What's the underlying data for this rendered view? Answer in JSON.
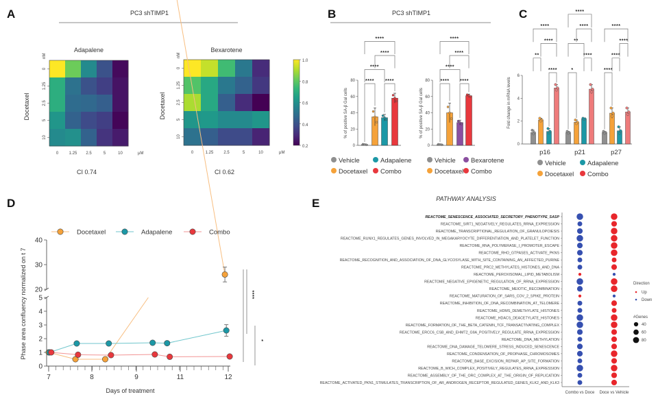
{
  "panel_labels": [
    "A",
    "B",
    "C",
    "D",
    "E"
  ],
  "headers": {
    "A": "PC3 shTIMP1",
    "B": "PC3 shTIMP1"
  },
  "colors": {
    "vehicle": "#8f8f8f",
    "docetaxel": "#f5a23a",
    "adapalene": "#1c98a6",
    "bexarotene": "#8a4fa0",
    "combo": "#e8383d",
    "combo_light": "#ee7b7b",
    "up": "#e8262b",
    "down": "#3650b0"
  },
  "colorbar": {
    "min": 0.2,
    "max": 1.0,
    "ticks": [
      "1.0",
      "0.8",
      "0.6",
      "0.4",
      "0.2"
    ]
  },
  "chart_data": [
    {
      "type": "heatmap",
      "title": "Adapalene",
      "ylabel": "Docetaxel",
      "y_unit": "nM",
      "x_unit": "μM",
      "x_ticks": [
        "0",
        "1.25",
        "2.5",
        "5",
        "10"
      ],
      "y_ticks": [
        "0",
        "1.25",
        "2.5",
        "5",
        "10"
      ],
      "values": [
        [
          1.0,
          0.82,
          0.58,
          0.4,
          0.22
        ],
        [
          0.7,
          0.5,
          0.4,
          0.35,
          0.24
        ],
        [
          0.7,
          0.48,
          0.47,
          0.44,
          0.24
        ],
        [
          0.62,
          0.45,
          0.38,
          0.35,
          0.21
        ],
        [
          0.58,
          0.6,
          0.45,
          0.32,
          0.26
        ]
      ],
      "annotation": "CI 0.74"
    },
    {
      "type": "heatmap",
      "title": "Bexarotene",
      "ylabel": "Docetaxel",
      "y_unit": "nM",
      "x_unit": "μM",
      "x_ticks": [
        "0",
        "1.25",
        "2.5",
        "5",
        "10"
      ],
      "y_ticks": [
        "0",
        "1.25",
        "2.5",
        "5",
        "10"
      ],
      "values": [
        [
          1.0,
          0.93,
          0.75,
          0.52,
          0.3
        ],
        [
          0.78,
          0.68,
          0.52,
          0.45,
          0.33
        ],
        [
          0.9,
          0.68,
          0.44,
          0.3,
          0.2
        ],
        [
          0.62,
          0.63,
          0.58,
          0.58,
          0.62
        ],
        [
          0.5,
          0.44,
          0.38,
          0.38,
          0.28
        ]
      ],
      "annotation": "CI 0.62"
    },
    {
      "type": "bar",
      "ylabel": "% of positive SA-β Gal cells",
      "ylim": [
        0,
        80
      ],
      "yticks": [
        "0",
        "20",
        "40",
        "60",
        "80"
      ],
      "categories": [
        "Vehicle",
        "Docetaxel",
        "Adapalene",
        "Combo"
      ],
      "color_keys": [
        "vehicle",
        "docetaxel",
        "adapalene",
        "combo"
      ],
      "values": [
        1,
        35,
        34,
        58
      ],
      "errors": [
        0.6,
        11,
        4,
        6
      ],
      "comparisons": [
        {
          "pair": [
            0,
            1
          ],
          "label": "****",
          "level": 0
        },
        {
          "pair": [
            2,
            3
          ],
          "label": "****",
          "level": 0
        },
        {
          "pair": [
            0,
            2
          ],
          "label": "****",
          "level": 1
        },
        {
          "pair": [
            1,
            3
          ],
          "label": "****",
          "level": 2
        },
        {
          "pair": [
            0,
            3
          ],
          "label": "****",
          "level": 3
        }
      ],
      "legend": [
        "Vehicle",
        "Adapalene",
        "Docetaxel",
        "Combo"
      ]
    },
    {
      "type": "bar",
      "ylabel": "% of positive SA-β Gal cells",
      "ylim": [
        0,
        80
      ],
      "yticks": [
        "0",
        "20",
        "40",
        "60",
        "80"
      ],
      "categories": [
        "Vehicle",
        "Docetaxel",
        "Bexarotene",
        "Combo"
      ],
      "color_keys": [
        "vehicle",
        "docetaxel",
        "bexarotene",
        "combo"
      ],
      "values": [
        1,
        40,
        28,
        61
      ],
      "errors": [
        0.5,
        12,
        3,
        2
      ],
      "comparisons": [
        {
          "pair": [
            0,
            1
          ],
          "label": "****",
          "level": 0
        },
        {
          "pair": [
            2,
            3
          ],
          "label": "****",
          "level": 0
        },
        {
          "pair": [
            0,
            2
          ],
          "label": "****",
          "level": 1
        },
        {
          "pair": [
            1,
            3
          ],
          "label": "****",
          "level": 2
        },
        {
          "pair": [
            0,
            3
          ],
          "label": "****",
          "level": 3
        }
      ],
      "legend": [
        "Vehicle",
        "Bexarotene",
        "Docetaxel",
        "Combo"
      ]
    },
    {
      "type": "bar",
      "ylabel": "Fold change in mRNA levels",
      "ylim": [
        0,
        6
      ],
      "yticks": [
        "0",
        "2",
        "4",
        "6"
      ],
      "groups": [
        "p16",
        "p21",
        "p27"
      ],
      "series": [
        {
          "name": "Vehicle",
          "color_key": "vehicle",
          "values": [
            1.0,
            1.0,
            1.0
          ],
          "errors": [
            0.2,
            0.1,
            0.1
          ]
        },
        {
          "name": "Docetaxel",
          "color_key": "docetaxel",
          "values": [
            2.1,
            1.9,
            2.7
          ],
          "errors": [
            0.15,
            0.2,
            0.45
          ]
        },
        {
          "name": "Adapalene",
          "color_key": "adapalene",
          "values": [
            1.1,
            2.2,
            1.15
          ],
          "errors": [
            0.25,
            0.05,
            0.35
          ]
        },
        {
          "name": "Combo",
          "color_key": "combo_light",
          "values": [
            4.9,
            4.8,
            2.8
          ],
          "errors": [
            0.3,
            0.4,
            0.35
          ]
        }
      ],
      "comparisons": [
        [
          {
            "pair": [
              2,
              3
            ],
            "label": "****",
            "level": 0
          },
          {
            "pair": [
              0,
              1
            ],
            "label": "**",
            "level": 1
          },
          {
            "pair": [
              1,
              3
            ],
            "label": "****",
            "level": 2
          },
          {
            "pair": [
              0,
              3
            ],
            "label": "****",
            "level": 3
          }
        ],
        [
          {
            "pair": [
              0,
              1
            ],
            "label": "*",
            "level": 0
          },
          {
            "pair": [
              2,
              3
            ],
            "label": "****",
            "level": 1
          },
          {
            "pair": [
              0,
              2
            ],
            "label": "**",
            "level": 2
          },
          {
            "pair": [
              1,
              3
            ],
            "label": "****",
            "level": 3
          },
          {
            "pair": [
              0,
              3
            ],
            "label": "****",
            "level": 4
          }
        ],
        [
          {
            "pair": [
              0,
              1
            ],
            "label": "****",
            "level": 0
          },
          {
            "pair": [
              1,
              2
            ],
            "label": "****",
            "level": 1
          },
          {
            "pair": [
              2,
              3
            ],
            "label": "****",
            "level": 2
          },
          {
            "pair": [
              0,
              3
            ],
            "label": "****",
            "level": 3
          }
        ]
      ],
      "legend": [
        "Vehicle",
        "Adapalene",
        "Docetaxel",
        "Combo"
      ]
    },
    {
      "type": "line",
      "xlabel": "Days of treatment",
      "ylabel": "Phase area confluency normalized on t 7",
      "x_ticks": [
        "7",
        "8",
        "9",
        "11",
        "12"
      ],
      "y_ticks_lower": [
        "0",
        "1",
        "2",
        "3",
        "4",
        "5"
      ],
      "y_ticks_upper": [
        "20",
        "30",
        "40"
      ],
      "ylim_lower": [
        0,
        5
      ],
      "ylim_upper": [
        20,
        40
      ],
      "series": [
        {
          "name": "Docetaxel",
          "color_key": "docetaxel",
          "x_tick_pos": [
            0,
            0.62,
            1.3,
            3.93
          ],
          "y": [
            1,
            0.5,
            0.5,
            26
          ],
          "errors": [
            0,
            0,
            0,
            3
          ]
        },
        {
          "name": "Adapalene",
          "color_key": "adapalene",
          "x_tick_pos": [
            0.02,
            0.65,
            1.38,
            2.37,
            2.7,
            3.96
          ],
          "y": [
            1,
            1.65,
            1.65,
            1.7,
            1.67,
            2.6
          ],
          "errors": [
            0,
            0,
            0,
            0,
            0,
            0.42
          ]
        },
        {
          "name": "Combo",
          "color_key": "combo",
          "x_tick_pos": [
            0.06,
            0.68,
            1.43,
            2.42,
            2.76,
            4.03
          ],
          "y": [
            1,
            0.83,
            0.8,
            0.85,
            0.68,
            0.7
          ],
          "errors": [
            0,
            0,
            0,
            0,
            0,
            0
          ]
        }
      ],
      "significance": [
        {
          "label": "****"
        },
        {
          "label": "*"
        }
      ]
    },
    {
      "type": "dot",
      "title": "PATHWAY ANALYSIS",
      "columns": [
        "Combo vs Doce",
        "Doce vs Vehicle"
      ],
      "legend": {
        "direction_title": "Direction",
        "up": "Up",
        "down": "Down",
        "size_title": "#Genes",
        "sizes": [
          "40",
          "60",
          "80"
        ]
      },
      "pathways": [
        {
          "name": "REACTOME_SENESCENCE_ASSOCIATED_SECRETORY_PHENOTYPE_SASP",
          "highlight": true,
          "combo_vs_doce": {
            "dir": "Down",
            "genes": 75
          },
          "doce_vs_vehicle": {
            "dir": "Up",
            "genes": 75
          }
        },
        {
          "name": "REACTOME_SIRT1_NEGATIVELY_REGULATES_RRNA_EXPRESSION",
          "combo_vs_doce": {
            "dir": "Down",
            "genes": 40
          },
          "doce_vs_vehicle": {
            "dir": "Up",
            "genes": 55
          }
        },
        {
          "name": "REACTOME_TRANSCRIPTIONAL_REGULATION_OF_GRANULOPOIESIS",
          "combo_vs_doce": {
            "dir": "Down",
            "genes": 55
          },
          "doce_vs_vehicle": {
            "dir": "Up",
            "genes": 75
          }
        },
        {
          "name": "REACTOME_RUNX1_REGULATES_GENES_INVOLVED_IN_MEGAKARYOCYTE_DIFFERENTIATION_AND_PLATELET_FUNCTION",
          "combo_vs_doce": {
            "dir": "Down",
            "genes": 75
          },
          "doce_vs_vehicle": {
            "dir": "Up",
            "genes": 75
          }
        },
        {
          "name": "REACTOME_RNA_POLYMERASE_I_PROMOTER_ESCAPE",
          "combo_vs_doce": {
            "dir": "Down",
            "genes": 55
          },
          "doce_vs_vehicle": {
            "dir": "Up",
            "genes": 75
          }
        },
        {
          "name": "REACTOME_RHO_GTPASES_ACTIVATE_PKNS",
          "combo_vs_doce": {
            "dir": "Down",
            "genes": 55
          },
          "doce_vs_vehicle": {
            "dir": "Up",
            "genes": 75
          }
        },
        {
          "name": "REACTOME_RECOGNITION_AND_ASSOCIATION_OF_DNA_GLYCOSYLASE_WITH_SITE_CONTAINING_AN_AFFECTED_PURINE",
          "combo_vs_doce": {
            "dir": "Down",
            "genes": 40
          },
          "doce_vs_vehicle": {
            "dir": "Up",
            "genes": 40
          }
        },
        {
          "name": "REACTOME_PRC2_METHYLATES_HISTONES_AND_DNA",
          "combo_vs_doce": {
            "dir": "Down",
            "genes": 40
          },
          "doce_vs_vehicle": {
            "dir": "Up",
            "genes": 55
          }
        },
        {
          "name": "REACTOME_PEROXISOMAL_LIPID_METABOLISM",
          "combo_vs_doce": {
            "dir": "Up",
            "genes": 15
          },
          "doce_vs_vehicle": {
            "dir": "Down",
            "genes": 15
          }
        },
        {
          "name": "REACTOME_NEGATIVE_EPIGENETIC_REGULATION_OF_RRNA_EXPRESSION",
          "combo_vs_doce": {
            "dir": "Down",
            "genes": 75
          },
          "doce_vs_vehicle": {
            "dir": "Up",
            "genes": 75
          }
        },
        {
          "name": "REACTOME_MEIOTIC_RECOMBINATION",
          "combo_vs_doce": {
            "dir": "Down",
            "genes": 55
          },
          "doce_vs_vehicle": {
            "dir": "Up",
            "genes": 75
          }
        },
        {
          "name": "REACTOME_MATURATION_OF_SARS_COV_2_SPIKE_PROTEIN",
          "combo_vs_doce": {
            "dir": "Up",
            "genes": 15
          },
          "doce_vs_vehicle": {
            "dir": "Down",
            "genes": 15
          }
        },
        {
          "name": "REACTOME_INHIBITION_OF_DNA_RECOMBINATION_AT_TELOMERE",
          "combo_vs_doce": {
            "dir": "Down",
            "genes": 40
          },
          "doce_vs_vehicle": {
            "dir": "Up",
            "genes": 55
          }
        },
        {
          "name": "REACTOME_HDMS_DEMETHYLATE_HISTONES",
          "combo_vs_doce": {
            "dir": "Down",
            "genes": 40
          },
          "doce_vs_vehicle": {
            "dir": "Up",
            "genes": 40
          }
        },
        {
          "name": "REACTOME_HDACS_DEACETYLATE_HISTONES",
          "combo_vs_doce": {
            "dir": "Down",
            "genes": 75
          },
          "doce_vs_vehicle": {
            "dir": "Up",
            "genes": 75
          }
        },
        {
          "name": "REACTOME_FORMATION_OF_THE_BETA_CATENIN_TCF_TRANSACTIVATING_COMPLEX",
          "combo_vs_doce": {
            "dir": "Down",
            "genes": 75
          },
          "doce_vs_vehicle": {
            "dir": "Up",
            "genes": 75
          }
        },
        {
          "name": "REACTOME_ERCC6_CSB_AND_EHMT2_G9A_POSITIVELY_REGULATE_RRNA_EXPRESSION",
          "combo_vs_doce": {
            "dir": "Down",
            "genes": 55
          },
          "doce_vs_vehicle": {
            "dir": "Up",
            "genes": 55
          }
        },
        {
          "name": "REACTOME_DNA_METHYLATION",
          "combo_vs_doce": {
            "dir": "Down",
            "genes": 40
          },
          "doce_vs_vehicle": {
            "dir": "Up",
            "genes": 55
          }
        },
        {
          "name": "REACTOME_DNA_DAMAGE_TELOMERE_STRESS_INDUCED_SENESCENCE",
          "combo_vs_doce": {
            "dir": "Down",
            "genes": 55
          },
          "doce_vs_vehicle": {
            "dir": "Up",
            "genes": 55
          }
        },
        {
          "name": "REACTOME_CONDENSATION_OF_PROPHASE_CHROMOSOMES",
          "combo_vs_doce": {
            "dir": "Down",
            "genes": 55
          },
          "doce_vs_vehicle": {
            "dir": "Up",
            "genes": 75
          }
        },
        {
          "name": "REACTOME_BASE_EXCISION_REPAIR_AP_SITE_FORMATION",
          "combo_vs_doce": {
            "dir": "Down",
            "genes": 40
          },
          "doce_vs_vehicle": {
            "dir": "Up",
            "genes": 55
          }
        },
        {
          "name": "REACTOME_B_WICH_COMPLEX_POSITIVELY_REGULATES_RRNA_EXPRESSION",
          "combo_vs_doce": {
            "dir": "Down",
            "genes": 75
          },
          "doce_vs_vehicle": {
            "dir": "Up",
            "genes": 75
          }
        },
        {
          "name": "REACTOME_ASSEMBLY_OF_THE_ORC_COMPLEX_AT_THE_ORIGIN_OF_REPLICATION",
          "combo_vs_doce": {
            "dir": "Down",
            "genes": 40
          },
          "doce_vs_vehicle": {
            "dir": "Up",
            "genes": 55
          }
        },
        {
          "name": "REACTOME_ACTIVATED_PKN1_STIMULATES_TRANSCRIPTION_OF_AR_ANDROGEN_RECEPTOR_REGULATED_GENES_KLK2_AND_KLK3",
          "combo_vs_doce": {
            "dir": "Down",
            "genes": 40
          },
          "doce_vs_vehicle": {
            "dir": "Up",
            "genes": 55
          }
        }
      ]
    }
  ]
}
